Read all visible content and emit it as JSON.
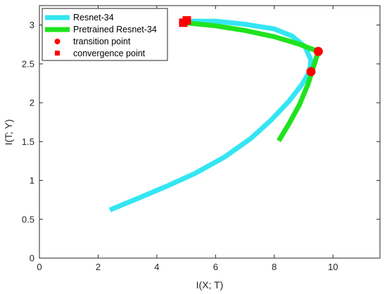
{
  "chart_data": {
    "type": "line",
    "title": "",
    "xlabel": "I(X; T)",
    "ylabel": "I(T; Y)",
    "xlim": [
      0,
      11.6
    ],
    "ylim": [
      0,
      3.25
    ],
    "xticks": [
      0,
      2,
      4,
      6,
      8,
      10
    ],
    "yticks": [
      0,
      0.5,
      1,
      1.5,
      2,
      2.5,
      3
    ],
    "grid": false,
    "legend_position": "top-left",
    "series": [
      {
        "name": "Resnet-34",
        "color": "#33e6f2",
        "points": [
          [
            2.4,
            0.62
          ],
          [
            3.3,
            0.76
          ],
          [
            4.3,
            0.92
          ],
          [
            5.3,
            1.09
          ],
          [
            6.3,
            1.3
          ],
          [
            7.2,
            1.54
          ],
          [
            7.9,
            1.78
          ],
          [
            8.5,
            2.02
          ],
          [
            8.95,
            2.24
          ],
          [
            9.2,
            2.4
          ],
          [
            9.25,
            2.55
          ],
          [
            9.05,
            2.72
          ],
          [
            8.6,
            2.86
          ],
          [
            8.0,
            2.95
          ],
          [
            7.0,
            3.01
          ],
          [
            6.0,
            3.05
          ],
          [
            5.0,
            3.05
          ]
        ]
      },
      {
        "name": "Pretrained Resnet-34",
        "color": "#1fe31f",
        "points": [
          [
            8.15,
            1.51
          ],
          [
            8.5,
            1.73
          ],
          [
            8.85,
            1.97
          ],
          [
            9.15,
            2.24
          ],
          [
            9.35,
            2.48
          ],
          [
            9.5,
            2.66
          ],
          [
            8.8,
            2.76
          ],
          [
            8.0,
            2.85
          ],
          [
            7.0,
            2.93
          ],
          [
            6.0,
            2.99
          ],
          [
            4.95,
            3.03
          ]
        ]
      }
    ],
    "markers": [
      {
        "name": "transition point",
        "shape": "circle",
        "color": "#ff0000",
        "points": [
          [
            9.25,
            2.4
          ],
          [
            9.5,
            2.66
          ]
        ]
      },
      {
        "name": "convergence point",
        "shape": "square",
        "color": "#ff0000",
        "points": [
          [
            4.9,
            3.03
          ],
          [
            5.02,
            3.06
          ]
        ]
      }
    ]
  }
}
